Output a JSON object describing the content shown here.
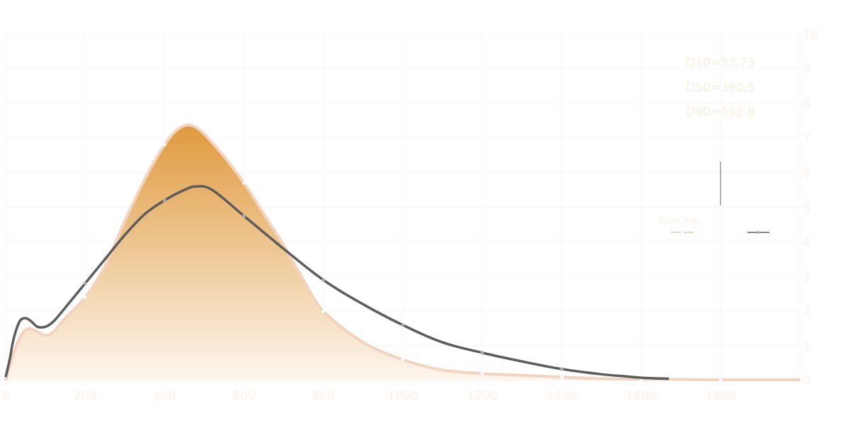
{
  "chart_data": {
    "type": "area",
    "x_ticks": [
      "0",
      "200",
      "400",
      "600",
      "800",
      "1000",
      "1200",
      "1400",
      "1600",
      "1800"
    ],
    "y_ticks": [
      "0",
      "1",
      "2",
      "3",
      "4",
      "5",
      "6",
      "7",
      "8",
      "9",
      "10"
    ],
    "xlim": [
      0,
      2000
    ],
    "ylim": [
      0,
      10
    ],
    "grid": true,
    "stats": [
      "D10=53.73",
      "D50=390.5",
      "D90=652.9"
    ],
    "legend": {
      "position": "right",
      "entries": [
        "Cum. Fre."
      ]
    },
    "series": [
      {
        "kind": "area",
        "x": [
          0,
          15,
          30,
          45,
          60,
          80,
          100,
          120,
          150,
          200,
          250,
          300,
          350,
          400,
          440,
          480,
          540,
          600,
          650,
          700,
          750,
          800,
          900,
          1000,
          1100,
          1200,
          1300,
          1400,
          1500,
          1600,
          1700,
          1800,
          1900,
          2000
        ],
        "y": [
          0.0,
          0.6,
          1.1,
          1.4,
          1.5,
          1.4,
          1.3,
          1.4,
          1.8,
          2.4,
          3.3,
          4.6,
          5.8,
          6.8,
          7.3,
          7.3,
          6.6,
          5.7,
          4.8,
          3.9,
          2.9,
          2.0,
          1.1,
          0.6,
          0.3,
          0.2,
          0.15,
          0.1,
          0.05,
          0.04,
          0.03,
          0.02,
          0.02,
          0.02
        ]
      },
      {
        "kind": "line",
        "x": [
          0,
          10,
          20,
          35,
          50,
          65,
          80,
          100,
          120,
          150,
          200,
          250,
          300,
          350,
          400,
          450,
          480,
          520,
          600,
          700,
          800,
          900,
          1000,
          1100,
          1200,
          1300,
          1400,
          1500,
          1560,
          1600,
          1670
        ],
        "y": [
          0.1,
          0.6,
          1.2,
          1.7,
          1.8,
          1.7,
          1.55,
          1.55,
          1.7,
          2.1,
          2.8,
          3.5,
          4.2,
          4.8,
          5.2,
          5.5,
          5.6,
          5.5,
          4.75,
          3.8,
          2.9,
          2.2,
          1.6,
          1.1,
          0.8,
          0.55,
          0.33,
          0.18,
          0.12,
          0.08,
          0.05
        ]
      }
    ],
    "colors": {
      "area_top": "#e09a3e",
      "area_bottom": "#fdf6ee",
      "area_stroke": "#f3d3bd",
      "line": "#5c5c5c",
      "tick_text": "#fdf1e8",
      "stat_text": "#faeedd",
      "grid": "#f5f5f5",
      "marker_area": "#ffffff",
      "marker_line": "#a9a9a9"
    }
  }
}
